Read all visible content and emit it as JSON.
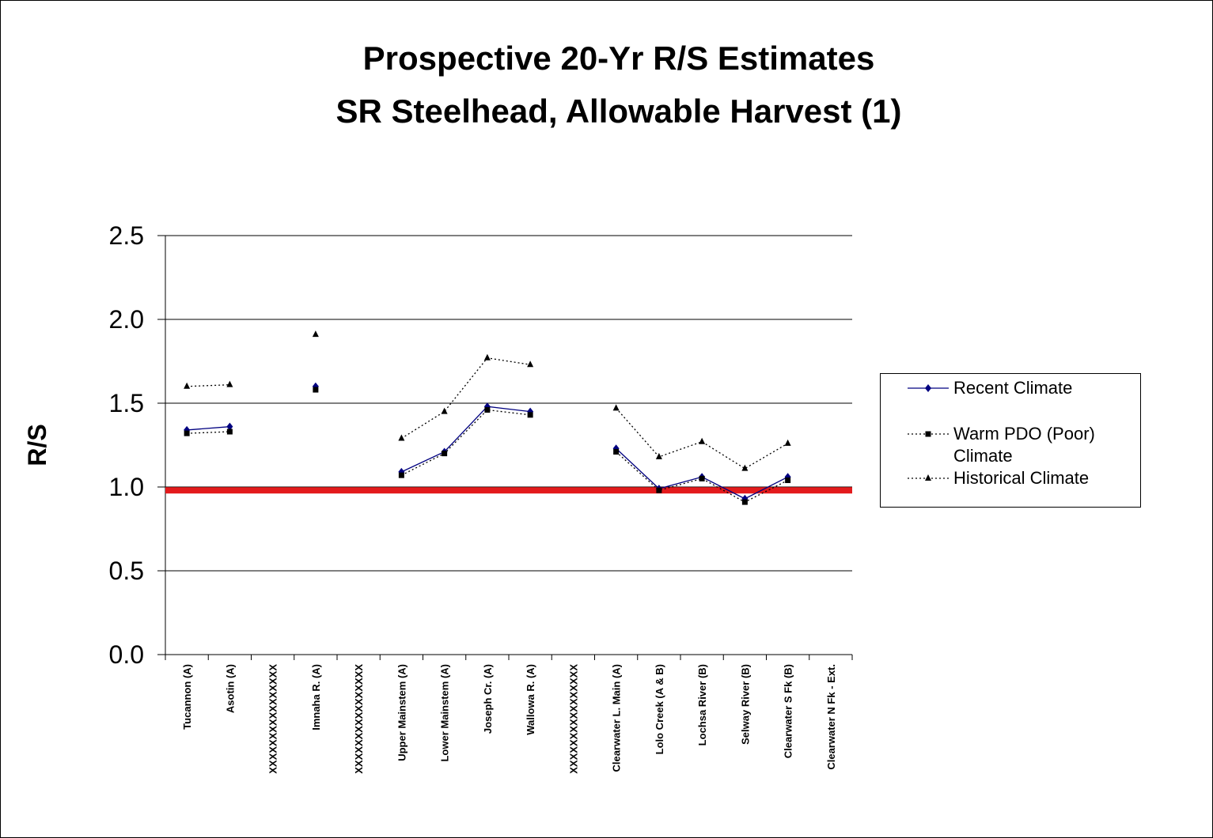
{
  "chart_data": {
    "type": "line",
    "title": [
      "Prospective 20-Yr R/S Estimates",
      "SR Steelhead, Allowable Harvest (1)"
    ],
    "y_label": "R/S",
    "categories": [
      "Tucannon (A)",
      "Asotin (A)",
      "XXXXXXXXXXXXXXXX",
      "Imnaha R. (A)",
      "XXXXXXXXXXXXXXXX",
      "Upper Mainstem (A)",
      "Lower Mainstem (A)",
      "Joseph Cr. (A)",
      "Wallowa R. (A)",
      "XXXXXXXXXXXXXXXX",
      "Clearwater L. Main (A)",
      "Lolo Creek (A & B)",
      "Lochsa River (B)",
      "Selway River (B)",
      "Clearwater S Fk (B)",
      "Clearwater N Fk  - Ext."
    ],
    "series": [
      {
        "name": "Recent Climate",
        "color": "#000080",
        "marker": "diamond",
        "dash": "solid",
        "values": [
          1.34,
          1.36,
          null,
          1.6,
          null,
          1.09,
          1.21,
          1.48,
          1.45,
          null,
          1.23,
          0.99,
          1.06,
          0.93,
          1.06,
          null
        ]
      },
      {
        "name": "Warm PDO (Poor) Climate",
        "color": "#000000",
        "marker": "square",
        "dash": "dotted",
        "values": [
          1.32,
          1.33,
          null,
          1.58,
          null,
          1.07,
          1.2,
          1.46,
          1.43,
          null,
          1.21,
          0.98,
          1.05,
          0.91,
          1.04,
          null
        ]
      },
      {
        "name": "Historical Climate",
        "color": "#000000",
        "marker": "triangle",
        "dash": "dotted",
        "values": [
          1.6,
          1.61,
          null,
          1.91,
          null,
          1.29,
          1.45,
          1.77,
          1.73,
          null,
          1.47,
          1.18,
          1.27,
          1.11,
          1.26,
          null
        ]
      }
    ],
    "reference_line": {
      "value": 0.98,
      "color": "#e31a1c"
    },
    "ylim": [
      0,
      2.5
    ],
    "yticks": [
      {
        "value": 0,
        "label": "0.0"
      },
      0.5,
      {
        "value": 1,
        "label": "1.0"
      },
      1.5,
      {
        "value": 2,
        "label": "2.0"
      },
      2.5
    ],
    "grid": true,
    "legend": "right"
  }
}
